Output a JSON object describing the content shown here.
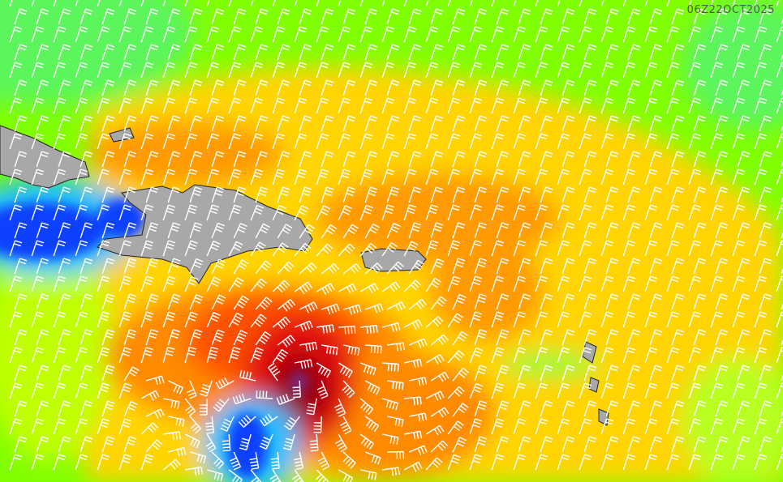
{
  "timestamp": "06Z22OCT2025"
}
